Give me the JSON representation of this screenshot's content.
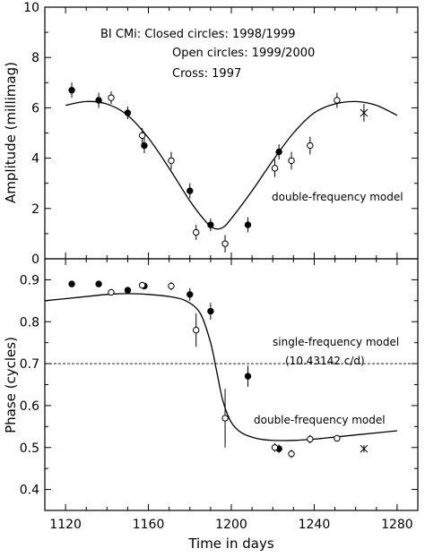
{
  "chart_data": [
    {
      "type": "scatter",
      "id": "amplitude",
      "ylabel": "Amplitude (millimag)",
      "ylim": [
        0,
        10
      ],
      "yticks": [
        0,
        2,
        4,
        6,
        8,
        10
      ],
      "xlim": [
        1110,
        1290
      ],
      "annotations": {
        "title": "BI CMi:  Closed circles: 1998/1999",
        "line2": "Open circles:   1999/2000",
        "line3": "Cross: 1997",
        "model": "double-frequency model"
      },
      "series": [
        {
          "name": "1998/1999",
          "marker": "closed",
          "points": [
            [
              1123,
              6.7,
              0.3
            ],
            [
              1136,
              6.3,
              0.3
            ],
            [
              1150,
              5.8,
              0.25
            ],
            [
              1158,
              4.5,
              0.3
            ],
            [
              1180,
              2.7,
              0.3
            ],
            [
              1190,
              1.35,
              0.25
            ],
            [
              1208,
              1.35,
              0.3
            ],
            [
              1223,
              4.25,
              0.3
            ]
          ]
        },
        {
          "name": "1999/2000",
          "marker": "open",
          "points": [
            [
              1142,
              6.4,
              0.25
            ],
            [
              1157,
              4.9,
              0.3
            ],
            [
              1171,
              3.9,
              0.35
            ],
            [
              1183,
              1.05,
              0.3
            ],
            [
              1197,
              0.6,
              0.35
            ],
            [
              1221,
              3.6,
              0.35
            ],
            [
              1229,
              3.9,
              0.35
            ],
            [
              1238,
              4.5,
              0.35
            ],
            [
              1251,
              6.3,
              0.3
            ]
          ]
        },
        {
          "name": "1997",
          "marker": "cross",
          "points": [
            [
              1264,
              5.8,
              0.35
            ]
          ]
        }
      ],
      "model_curve": [
        [
          1120,
          6.1
        ],
        [
          1130,
          6.25
        ],
        [
          1140,
          6.15
        ],
        [
          1150,
          5.7
        ],
        [
          1160,
          4.8
        ],
        [
          1170,
          3.6
        ],
        [
          1180,
          2.3
        ],
        [
          1188,
          1.45
        ],
        [
          1192,
          1.2
        ],
        [
          1196,
          1.25
        ],
        [
          1200,
          1.6
        ],
        [
          1210,
          2.7
        ],
        [
          1220,
          3.9
        ],
        [
          1230,
          5.0
        ],
        [
          1240,
          5.8
        ],
        [
          1250,
          6.15
        ],
        [
          1260,
          6.25
        ],
        [
          1270,
          6.1
        ],
        [
          1280,
          5.7
        ]
      ]
    },
    {
      "type": "scatter",
      "id": "phase",
      "ylabel": "Phase (cycles)",
      "xlabel": "Time in days",
      "ylim": [
        0.35,
        0.95
      ],
      "yticks": [
        0.4,
        0.5,
        0.6,
        0.7,
        0.8,
        0.9
      ],
      "xlim": [
        1110,
        1290
      ],
      "xticks": [
        1120,
        1160,
        1200,
        1240,
        1280
      ],
      "annotations": {
        "single_model": "single-frequency model",
        "single_freq": "(10.43142 c/d)",
        "double_model": "double-frequency model"
      },
      "single_frequency_level": 0.7,
      "series": [
        {
          "name": "1998/1999",
          "marker": "closed",
          "points": [
            [
              1123,
              0.89,
              0.005
            ],
            [
              1136,
              0.89,
              0.005
            ],
            [
              1150,
              0.875,
              0.005
            ],
            [
              1158,
              0.885,
              0.005
            ],
            [
              1180,
              0.865,
              0.015
            ],
            [
              1190,
              0.825,
              0.02
            ],
            [
              1208,
              0.67,
              0.025
            ],
            [
              1223,
              0.497,
              0.01
            ]
          ]
        },
        {
          "name": "1999/2000",
          "marker": "open",
          "points": [
            [
              1142,
              0.87,
              0.005
            ],
            [
              1157,
              0.887,
              0.005
            ],
            [
              1171,
              0.885,
              0.01
            ],
            [
              1183,
              0.78,
              0.04
            ],
            [
              1197,
              0.57,
              0.07
            ],
            [
              1221,
              0.5,
              0.01
            ],
            [
              1229,
              0.485,
              0.01
            ],
            [
              1238,
              0.52,
              0.01
            ],
            [
              1251,
              0.522,
              0.005
            ]
          ]
        },
        {
          "name": "1997",
          "marker": "cross",
          "points": [
            [
              1264,
              0.497,
              0
            ]
          ]
        }
      ],
      "model_curve": [
        [
          1110,
          0.85
        ],
        [
          1120,
          0.855
        ],
        [
          1130,
          0.86
        ],
        [
          1140,
          0.865
        ],
        [
          1150,
          0.867
        ],
        [
          1160,
          0.865
        ],
        [
          1170,
          0.86
        ],
        [
          1178,
          0.85
        ],
        [
          1185,
          0.82
        ],
        [
          1190,
          0.75
        ],
        [
          1193,
          0.68
        ],
        [
          1196,
          0.61
        ],
        [
          1200,
          0.56
        ],
        [
          1205,
          0.535
        ],
        [
          1212,
          0.522
        ],
        [
          1220,
          0.517
        ],
        [
          1230,
          0.517
        ],
        [
          1240,
          0.52
        ],
        [
          1250,
          0.525
        ],
        [
          1260,
          0.53
        ],
        [
          1270,
          0.535
        ],
        [
          1280,
          0.54
        ]
      ]
    }
  ]
}
